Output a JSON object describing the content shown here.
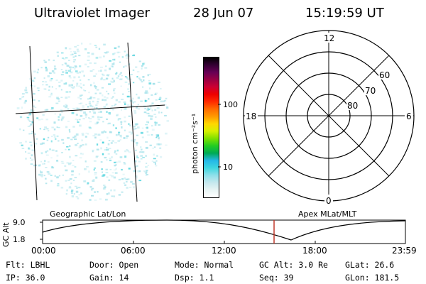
{
  "header": {
    "title": "Ultraviolet Imager",
    "date": "28 Jun 07",
    "time": "15:19:59  UT"
  },
  "colorbar": {
    "label": "photon cm⁻²s⁻¹",
    "tick_100": "100",
    "tick_10": "10",
    "colors": [
      "#ffffff",
      "#e8f4f4",
      "#c6e8ee",
      "#8fe0ea",
      "#3ed6e0",
      "#25b8e8",
      "#00aa55",
      "#22cc22",
      "#7fe000",
      "#d8f000",
      "#ffd700",
      "#ff9900",
      "#ff6a00",
      "#ff2a00",
      "#ee0000",
      "#cc0033",
      "#990044",
      "#660055",
      "#330033",
      "#000000"
    ]
  },
  "polar": {
    "top_label": "12",
    "bottom_label": "0",
    "left_label": "18",
    "right_label": "6",
    "lat_60": "60",
    "lat_70": "70",
    "lat_80": "80"
  },
  "timeline": {
    "left_caption": "Geographic Lat/Lon",
    "right_caption": "Apex MLat/MLT",
    "y_axis_label": "GC Alt",
    "y_top": "9.0",
    "y_bottom": "1.8",
    "x_ticks": [
      "00:00",
      "06:00",
      "12:00",
      "18:00",
      "23:59"
    ]
  },
  "status": {
    "flt": "Flt: LBHL",
    "ip": "IP: 36.0",
    "door": "Door: Open",
    "gain": "Gain: 14",
    "mode": "Mode: Normal",
    "dsp": "Dsp:    1.1",
    "gcalt": "GC Alt: 3.0 Re",
    "seq": "Seq: 39",
    "glat": "GLat:  26.6",
    "glon": "GLon: 181.5"
  },
  "colors": {
    "speckle": "#9edfe8",
    "speckle_dark": "#36cdd8",
    "marker": "#c0392b"
  }
}
